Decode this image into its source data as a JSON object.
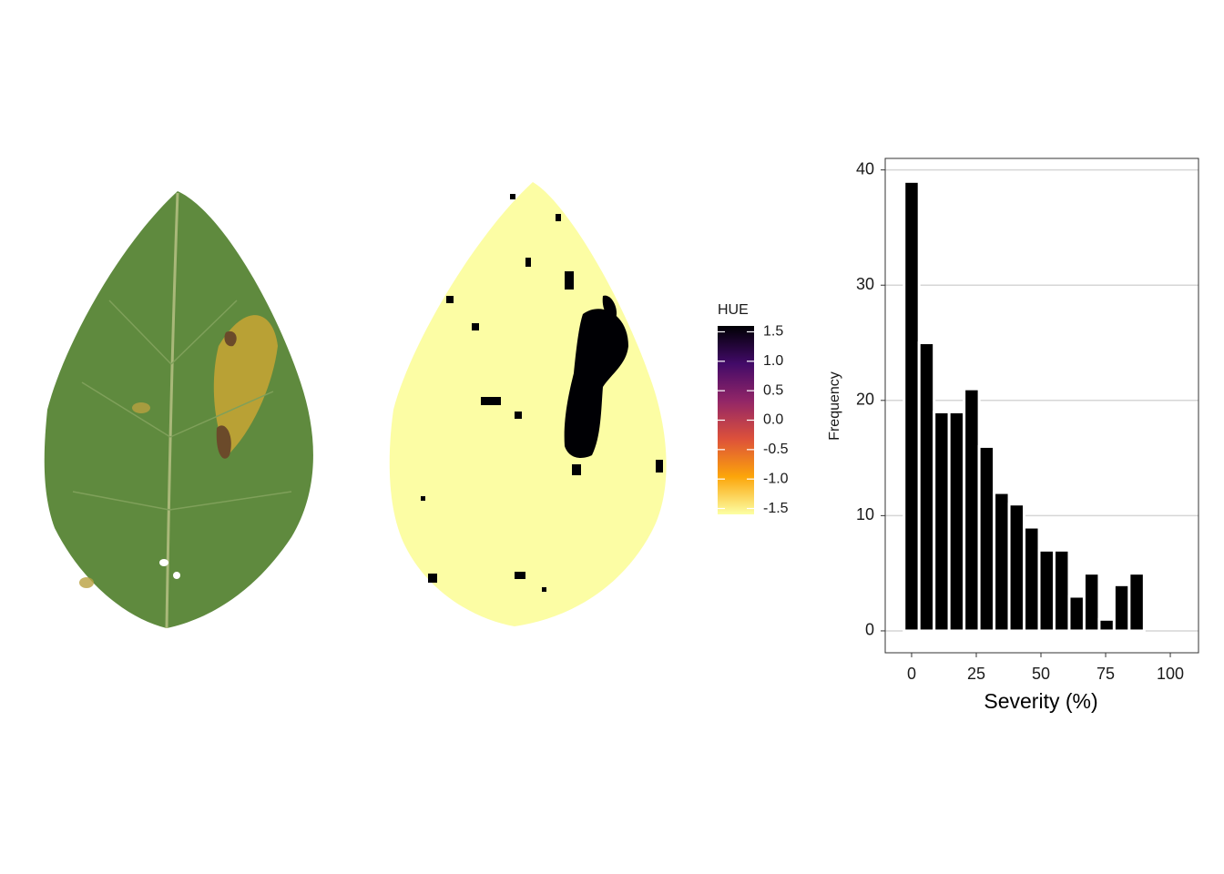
{
  "chart_data": [
    {
      "type": "colorbar",
      "title": "HUE",
      "colors": [
        "#000004",
        "#420a68",
        "#932667",
        "#dd513a",
        "#fca50a",
        "#fcffa4"
      ],
      "ylim": [
        -1.6,
        1.6
      ],
      "yticks": [
        1.5,
        {
          "value": 1,
          "label": "1.0"
        },
        0.5,
        {
          "value": 0,
          "label": "0.0"
        },
        -0.5,
        {
          "value": -1,
          "label": "-1.0"
        },
        -1.5
      ]
    },
    {
      "type": "histogram",
      "xlabel": "Severity (%)",
      "ylabel": "Frequency",
      "color": "#000000",
      "bins": [
        -2.9,
        2.9,
        8.7,
        14.5,
        20.3,
        26.1,
        31.9,
        37.7,
        43.5,
        49.3,
        55.1,
        60.9,
        66.7,
        72.5,
        78.3,
        84.1,
        89.9
      ],
      "values": [
        39,
        25,
        19,
        19,
        21,
        16,
        12,
        11,
        9,
        7,
        7,
        3,
        5,
        1,
        4,
        5
      ],
      "xlim": [
        -10.2,
        110.9
      ],
      "ylim": [
        -1.9,
        41
      ],
      "xticks": [
        0,
        25,
        50,
        75,
        100
      ],
      "yticks": [
        0,
        10,
        20,
        30,
        40
      ],
      "grid": true
    }
  ]
}
